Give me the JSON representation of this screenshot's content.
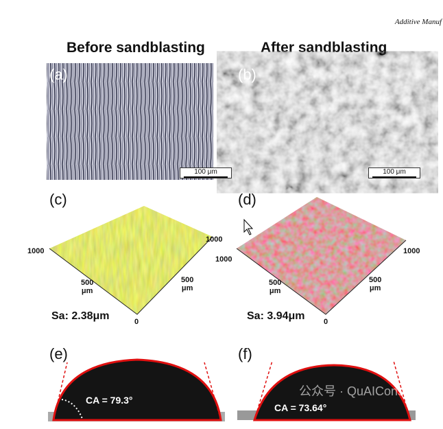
{
  "header": {
    "journal": "Additive Manuf"
  },
  "columns": [
    {
      "title": "Before sandblasting"
    },
    {
      "title": "After sandblasting"
    }
  ],
  "panels": {
    "a": {
      "label": "(a)",
      "scale": "100 μm"
    },
    "b": {
      "label": "(b)",
      "scale": "100 μm"
    },
    "c": {
      "label": "(c)",
      "tick_left": "1000",
      "tick_right": "1000",
      "tick_mid_left": "500",
      "tick_mid_right": "500",
      "unit": "μm",
      "tick_zero": "0",
      "sa": "Sa: 2.38μm"
    },
    "d": {
      "label": "(d)",
      "tick_left": "1000",
      "tick_right": "1000",
      "tick_mid_left": "500",
      "tick_mid_right": "500",
      "unit": "μm",
      "tick_zero": "0",
      "sa": "Sa: 3.94μm"
    },
    "e": {
      "label": "(e)",
      "ca": "CA = 79.3°"
    },
    "f": {
      "label": "(f)",
      "ca": "CA = 73.64°"
    }
  },
  "watermark": "公众号 · QuAIConstruct",
  "colors": {
    "contour": "#e01010",
    "droplet": "#141414"
  }
}
